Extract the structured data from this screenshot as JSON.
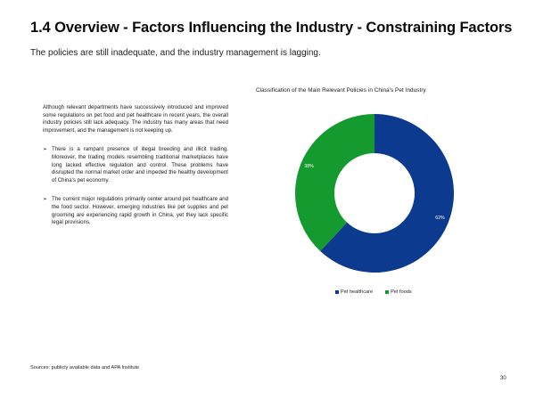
{
  "title": "1.4 Overview - Factors Influencing the Industry - Constraining Factors",
  "subtitle": "The policies are still inadequate, and the industry management is lagging.",
  "intro_paragraph": "Although relevant departments have successively introduced and improved some regulations on pet food and pet healthcare in recent years, the overall industry policies still lack adequacy. The industry has many areas that need improvement, and the management is not keeping up.",
  "bullets": [
    "There is a rampant presence of illegal breeding and illicit trading. Moreover, the trading models resembling traditional marketplaces have long lacked effective regulation and control. These problems have disrupted the normal market order and impeded the healthy development of China's pet economy.",
    "The current major regulations primarily center around pet healthcare and the food sector. However, emerging industries like pet supplies and pet grooming are experiencing rapid growth in China, yet they lack specific legal provisions."
  ],
  "bullet_symbol": "➢",
  "chart_data": {
    "type": "pie",
    "title": "Classification of the Main Relevant Policies in China's Pet Industry",
    "categories": [
      "Pet healthcare",
      "Pet foods"
    ],
    "values": [
      62,
      38
    ],
    "value_labels": [
      "62%",
      "38%"
    ],
    "colors": [
      "#0b3a8f",
      "#149a2e"
    ],
    "donut": true,
    "legend_position": "bottom"
  },
  "sources": "Sources: publicly available data and APA Institute",
  "page_number": "30"
}
